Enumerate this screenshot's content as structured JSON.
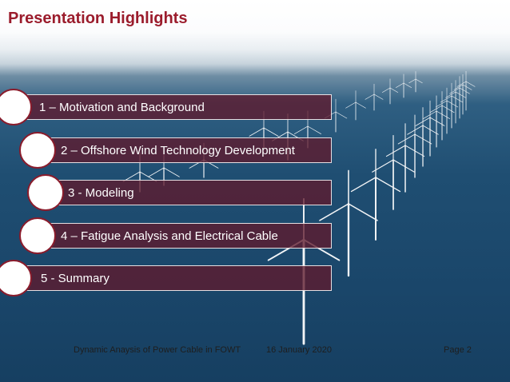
{
  "slide": {
    "title": "Presentation Highlights",
    "items": [
      "1 – Motivation and Background",
      "2 – Offshore Wind Technology Development",
      "3 - Modeling",
      "4 – Fatigue Analysis and Electrical Cable",
      "5 - Summary"
    ],
    "footer": {
      "left": "Dynamic Anaysis of Power Cable in FOWT",
      "center": "16 January 2020",
      "right": "Page 2"
    }
  },
  "colors": {
    "title": "#9b1c2c",
    "bar_fill": "#5f192d",
    "circle_border": "#8a1c2c"
  },
  "image": "offshore-wind-farm-photo"
}
